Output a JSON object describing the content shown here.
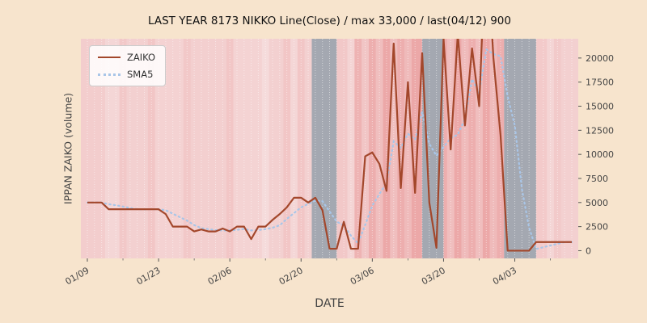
{
  "chart_data": {
    "type": "line",
    "title": "LAST YEAR 8173 NIKKO Line(Close) / max 33,000 / last(04/12) 900",
    "xlabel": "DATE",
    "ylabel": "IPPAN ZAIKO (volume)",
    "x_tick_labels": [
      "01/09",
      "01/23",
      "02/06",
      "02/20",
      "03/06",
      "03/20",
      "04/03"
    ],
    "x_tick_indices": [
      0,
      10,
      20,
      30,
      40,
      50,
      60
    ],
    "y_ticks": [
      0,
      2500,
      5000,
      7500,
      10000,
      12500,
      15000,
      17500,
      20000
    ],
    "ylim": [
      -800,
      22000
    ],
    "n_points": 69,
    "grid": "vertical white dotted line per day",
    "legend": {
      "position": "upper left"
    },
    "series": [
      {
        "name": "ZAIKO",
        "color": "#a3472b",
        "style": "solid",
        "values": [
          5000,
          5000,
          5000,
          4300,
          4300,
          4300,
          4300,
          4300,
          4300,
          4300,
          4300,
          3800,
          2500,
          2500,
          2500,
          2000,
          2200,
          2000,
          2000,
          2300,
          2000,
          2500,
          2500,
          1200,
          2500,
          2500,
          3200,
          3800,
          4500,
          5500,
          5500,
          5000,
          5500,
          4200,
          200,
          200,
          3000,
          200,
          200,
          9800,
          10200,
          9000,
          6200,
          21500,
          6500,
          17500,
          6000,
          20500,
          5000,
          300,
          22000,
          10500,
          22500,
          13000,
          21000,
          15000,
          33000,
          20000,
          12000,
          0,
          0,
          0,
          0,
          900,
          900,
          900,
          900,
          900,
          900
        ]
      },
      {
        "name": "SMA5",
        "color": "#a9c6e8",
        "style": "dotted",
        "derived_from": "ZAIKO",
        "window": 5
      }
    ],
    "colors": {
      "fig_bg": "#f7e4cd",
      "plot_bg": "#f7e6e6",
      "pink": "#ec9f9f",
      "red": "#e57f7f",
      "gray": "#9aa1ab",
      "tick_text": "#444444"
    },
    "bands": [
      [
        -1,
        3,
        "pink",
        0.35
      ],
      [
        3,
        5,
        "pink",
        0.22
      ],
      [
        5,
        6,
        "pink",
        0.42
      ],
      [
        6,
        9,
        "pink",
        0.3
      ],
      [
        9,
        10,
        "pink",
        0.45
      ],
      [
        10,
        14,
        "pink",
        0.28
      ],
      [
        14,
        15,
        "pink",
        0.42
      ],
      [
        15,
        20,
        "pink",
        0.32
      ],
      [
        20,
        21,
        "pink",
        0.45
      ],
      [
        21,
        25,
        "pink",
        0.26
      ],
      [
        25,
        26,
        "pink",
        0.14
      ],
      [
        26,
        28,
        "pink",
        0.3
      ],
      [
        28,
        29,
        "pink",
        0.45
      ],
      [
        29,
        30,
        "pink",
        0.22
      ],
      [
        30,
        31,
        "pink",
        0.45
      ],
      [
        31,
        32,
        "pink",
        0.3
      ],
      [
        32,
        35.5,
        "gray",
        0.9
      ],
      [
        35.5,
        37,
        "pink",
        0.42
      ],
      [
        37,
        38,
        "pink",
        0.25
      ],
      [
        38,
        39,
        "red",
        0.5
      ],
      [
        39,
        40,
        "red",
        0.32
      ],
      [
        40,
        41,
        "red",
        0.55
      ],
      [
        41,
        42,
        "red",
        0.38
      ],
      [
        42,
        43,
        "red",
        0.6
      ],
      [
        43,
        44,
        "red",
        0.38
      ],
      [
        44,
        45,
        "red",
        0.55
      ],
      [
        45,
        46,
        "red",
        0.42
      ],
      [
        46,
        47.5,
        "red",
        0.6
      ],
      [
        47.5,
        50.5,
        "gray",
        0.9
      ],
      [
        50.5,
        51,
        "red",
        0.55
      ],
      [
        51,
        52,
        "red",
        0.38
      ],
      [
        52,
        53,
        "red",
        0.6
      ],
      [
        53,
        54,
        "red",
        0.42
      ],
      [
        54,
        55,
        "red",
        0.55
      ],
      [
        55,
        56,
        "red",
        0.38
      ],
      [
        56,
        57,
        "red",
        0.6
      ],
      [
        57,
        58,
        "red",
        0.42
      ],
      [
        58,
        59,
        "red",
        0.55
      ],
      [
        59,
        63.5,
        "gray",
        0.9
      ],
      [
        63.5,
        65,
        "pink",
        0.38
      ],
      [
        65,
        66,
        "pink",
        0.24
      ],
      [
        66,
        67,
        "pink",
        0.4
      ],
      [
        67,
        70,
        "pink",
        0.3
      ]
    ]
  }
}
